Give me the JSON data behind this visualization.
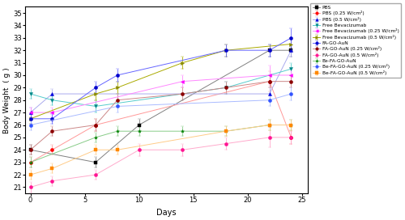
{
  "days": [
    0,
    2,
    4,
    6,
    8,
    10,
    14,
    18,
    22,
    24
  ],
  "series": [
    {
      "label": "PBS",
      "marker": "s",
      "linecolor": "#808080",
      "markercolor": "#000000",
      "values": [
        24.0,
        null,
        null,
        23.0,
        null,
        26.0,
        null,
        null,
        32.0,
        32.0
      ],
      "errors": [
        0.4,
        null,
        null,
        0.4,
        null,
        0.5,
        null,
        null,
        0.5,
        0.5
      ]
    },
    {
      "label": "PBS (0.25 W/cm²)",
      "marker": "o",
      "linecolor": "#ff9999",
      "markercolor": "#ff0000",
      "values": [
        23.0,
        24.0,
        null,
        26.0,
        null,
        null,
        null,
        null,
        29.5,
        25.0
      ],
      "errors": [
        0.4,
        0.4,
        null,
        0.5,
        null,
        null,
        null,
        null,
        0.8,
        0.5
      ]
    },
    {
      "label": "PBS (0.5 W/cm²)",
      "marker": "^",
      "linecolor": "#aaaaee",
      "markercolor": "#0000dd",
      "values": [
        27.0,
        28.5,
        null,
        null,
        null,
        null,
        null,
        null,
        28.5,
        32.0
      ],
      "errors": [
        0.4,
        0.4,
        null,
        null,
        null,
        null,
        null,
        null,
        0.5,
        0.5
      ]
    },
    {
      "label": "Free Bevacizumab",
      "marker": "v",
      "linecolor": "#55cccc",
      "markercolor": "#008888",
      "values": [
        28.5,
        28.0,
        null,
        27.5,
        null,
        null,
        null,
        29.0,
        null,
        30.5
      ],
      "errors": [
        0.4,
        0.4,
        null,
        0.5,
        null,
        null,
        null,
        0.5,
        null,
        0.5
      ]
    },
    {
      "label": "Free Bevacizumab (0.25 W/cm²)",
      "marker": "<",
      "linecolor": "#ff88ff",
      "markercolor": "#ff00ff",
      "values": [
        27.0,
        27.0,
        null,
        null,
        null,
        null,
        29.5,
        null,
        30.0,
        30.0
      ],
      "errors": [
        0.4,
        0.4,
        null,
        null,
        null,
        null,
        0.5,
        null,
        0.8,
        0.5
      ]
    },
    {
      "label": "Free Bevacizumab (0.5 W/cm²)",
      "marker": ">",
      "linecolor": "#aaaa00",
      "markercolor": "#888800",
      "values": [
        26.5,
        null,
        null,
        28.5,
        29.0,
        null,
        31.0,
        32.0,
        null,
        32.5
      ],
      "errors": [
        0.4,
        null,
        null,
        0.5,
        0.5,
        null,
        0.5,
        0.5,
        null,
        0.5
      ]
    },
    {
      "label": "FA-GO-AuN",
      "marker": "o",
      "linecolor": "#6666ff",
      "markercolor": "#0000cc",
      "values": [
        26.5,
        26.5,
        null,
        29.0,
        30.0,
        null,
        null,
        32.0,
        32.0,
        33.0
      ],
      "errors": [
        0.4,
        0.4,
        null,
        0.5,
        0.5,
        null,
        null,
        0.5,
        0.5,
        0.8
      ]
    },
    {
      "label": "FA-GO-AuN (0.25 W/cm²)",
      "marker": "o",
      "linecolor": "#cc8888",
      "markercolor": "#8b0000",
      "values": [
        24.0,
        25.5,
        null,
        26.0,
        28.0,
        null,
        28.5,
        29.0,
        29.5,
        29.5
      ],
      "errors": [
        0.4,
        0.4,
        null,
        0.5,
        0.5,
        null,
        0.5,
        0.5,
        0.5,
        0.5
      ]
    },
    {
      "label": "FA-GO-AuN (0.5 W/cm²)",
      "marker": "o",
      "linecolor": "#ffaacc",
      "markercolor": "#ff1493",
      "values": [
        21.0,
        21.5,
        null,
        22.0,
        null,
        24.0,
        24.0,
        24.5,
        25.0,
        25.0
      ],
      "errors": [
        0.4,
        0.4,
        null,
        0.4,
        null,
        0.5,
        0.5,
        0.5,
        0.8,
        0.5
      ]
    },
    {
      "label": "Be-FA-GO-AuN",
      "marker": "*",
      "linecolor": "#88cc88",
      "markercolor": "#008000",
      "values": [
        23.0,
        null,
        null,
        25.0,
        25.5,
        25.5,
        25.5,
        25.5,
        26.0,
        26.0
      ],
      "errors": [
        0.4,
        null,
        null,
        0.4,
        0.4,
        0.4,
        0.4,
        0.4,
        0.4,
        0.4
      ]
    },
    {
      "label": "Be-FA-GO-AuN (0.25 W/cm²)",
      "marker": "o",
      "linecolor": "#aabbff",
      "markercolor": "#3355ff",
      "values": [
        26.0,
        null,
        null,
        null,
        27.5,
        null,
        null,
        null,
        28.0,
        28.5
      ],
      "errors": [
        0.4,
        null,
        null,
        null,
        0.5,
        null,
        null,
        null,
        0.5,
        0.5
      ]
    },
    {
      "label": "Be-FA-GO-AuN (0.5 W/cm²)",
      "marker": "s",
      "linecolor": "#ffcc88",
      "markercolor": "#ff8800",
      "values": [
        22.0,
        22.5,
        null,
        24.0,
        24.0,
        null,
        null,
        25.5,
        26.0,
        26.0
      ],
      "errors": [
        0.4,
        0.4,
        null,
        0.4,
        0.4,
        null,
        null,
        0.4,
        0.4,
        0.4
      ]
    }
  ],
  "xlabel": "Days",
  "ylabel": "Body Weight  ( g )",
  "ylim": [
    20.5,
    35.5
  ],
  "xlim": [
    -0.5,
    25.5
  ],
  "yticks": [
    21,
    22,
    23,
    24,
    25,
    26,
    27,
    28,
    29,
    30,
    31,
    32,
    33,
    34,
    35
  ],
  "xticks": [
    0,
    5,
    10,
    15,
    20,
    25
  ],
  "figsize": [
    5.0,
    2.72
  ],
  "dpi": 100
}
